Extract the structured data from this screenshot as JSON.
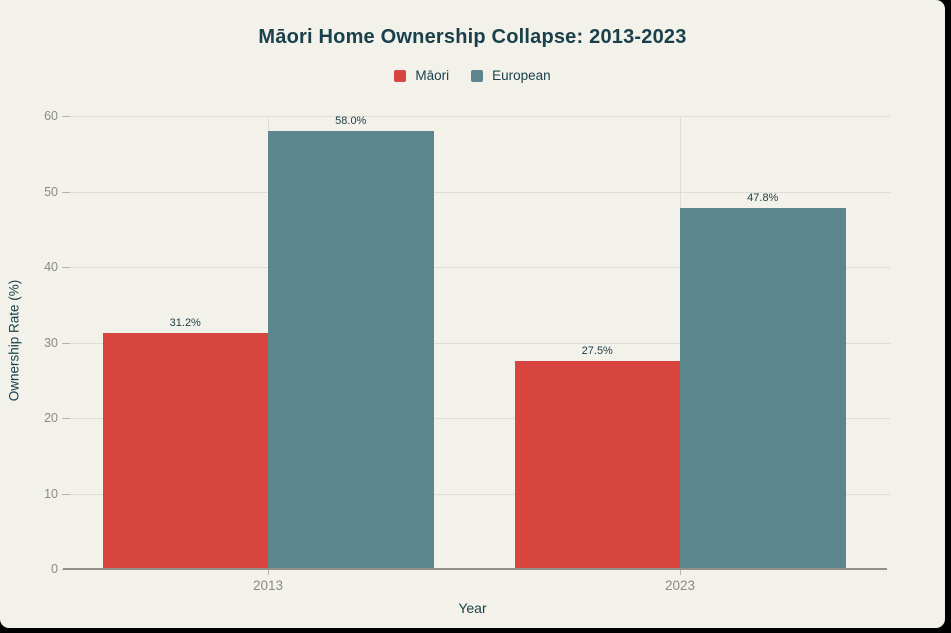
{
  "page": {
    "canvas_background": "#000000",
    "panel_background": "#F2F1EA"
  },
  "chart_data": {
    "type": "bar",
    "title": "Māori Home Ownership Collapse: 2013-2023",
    "categories": [
      "2013",
      "2023"
    ],
    "series": [
      {
        "name": "Māori",
        "color": "#D8453F",
        "values": [
          31.2,
          27.5
        ],
        "value_labels": [
          "31.2%",
          "27.5%"
        ]
      },
      {
        "name": "European",
        "color": "#5B868D",
        "values": [
          58.0,
          47.8
        ],
        "value_labels": [
          "58.0%",
          "47.8%"
        ]
      }
    ],
    "xlabel": "Year",
    "ylabel": "Ownership Rate (%)",
    "ylim": [
      0,
      60
    ],
    "yticks": [
      0,
      10,
      20,
      30,
      40,
      50,
      60
    ],
    "ytick_labels": [
      "0",
      "10",
      "20",
      "30",
      "40",
      "50",
      "60"
    ],
    "grid": true,
    "legend_position": "top-center",
    "colors": {
      "title_text": "#1A414B",
      "axis_title_text": "#1A414B",
      "tick_label_text": "#8B8B86",
      "gridline": "#DFDED5",
      "axis_line": "#8F8E88",
      "bar_value_label": "#1D3E47"
    }
  }
}
